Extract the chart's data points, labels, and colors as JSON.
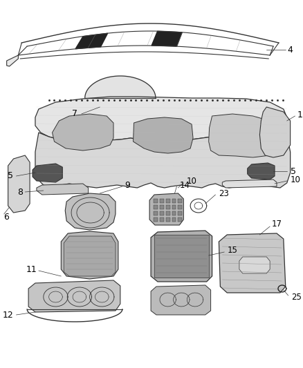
{
  "background_color": "#ffffff",
  "line_color": "#333333",
  "label_color": "#000000",
  "dark_color": "#222222",
  "light_gray": "#cccccc",
  "mid_gray": "#888888"
}
